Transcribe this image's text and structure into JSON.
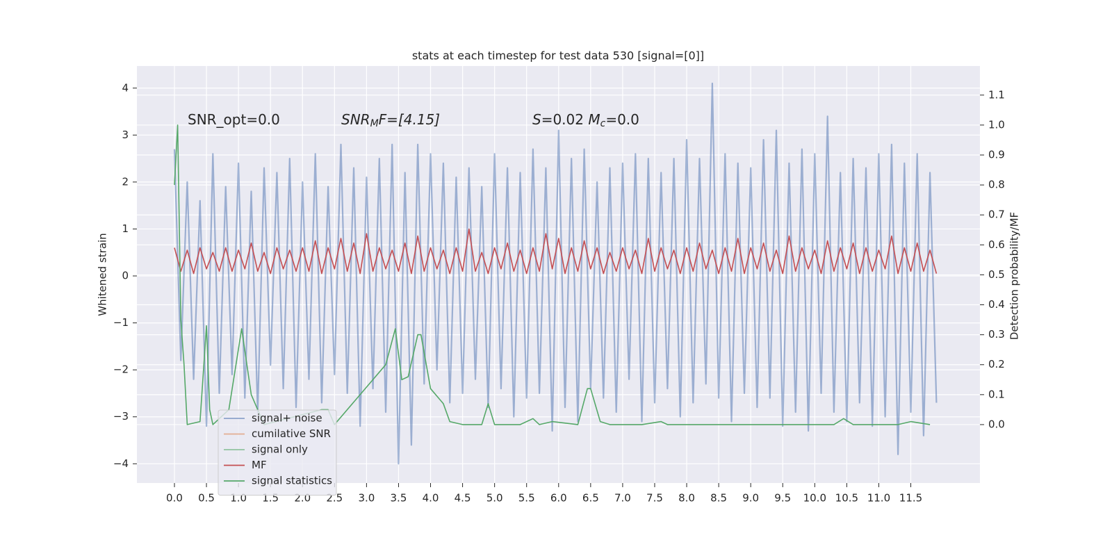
{
  "chart_data": {
    "type": "line",
    "title": "stats at each timestep for test data 530 [signal=[0]]",
    "y_label": "Whitened strain",
    "y2_label": "Detection probability/MF",
    "annotations": [
      [
        "SNR_opt=0.0"
      ],
      [
        "SNR",
        "M",
        "F=[4.15]"
      ],
      [
        "S",
        "=0.02   ",
        "M",
        "c",
        "=0.0"
      ]
    ],
    "xlim": [
      -0.586,
      12.58
    ],
    "ylim": [
      -4.41,
      4.47
    ],
    "y2lim": [
      -0.195,
      1.197
    ],
    "xticks": [
      {
        "value": 0,
        "label": "0.0"
      },
      {
        "value": 0.5,
        "label": "0.5"
      },
      {
        "value": 1,
        "label": "1.0"
      },
      {
        "value": 1.5,
        "label": "1.5"
      },
      {
        "value": 2,
        "label": "2.0"
      },
      {
        "value": 2.5,
        "label": "2.5"
      },
      {
        "value": 3,
        "label": "3.0"
      },
      {
        "value": 3.5,
        "label": "3.5"
      },
      {
        "value": 4,
        "label": "4.0"
      },
      {
        "value": 4.5,
        "label": "4.5"
      },
      {
        "value": 5,
        "label": "5.0"
      },
      {
        "value": 5.5,
        "label": "5.5"
      },
      {
        "value": 6,
        "label": "6.0"
      },
      {
        "value": 6.5,
        "label": "6.5"
      },
      {
        "value": 7,
        "label": "7.0"
      },
      {
        "value": 7.5,
        "label": "7.5"
      },
      {
        "value": 8,
        "label": "8.0"
      },
      {
        "value": 8.5,
        "label": "8.5"
      },
      {
        "value": 9,
        "label": "9.0"
      },
      {
        "value": 9.5,
        "label": "9.5"
      },
      {
        "value": 10,
        "label": "10.0"
      },
      {
        "value": 10.5,
        "label": "10.5"
      },
      {
        "value": 11,
        "label": "11.0"
      },
      {
        "value": 11.5,
        "label": "11.5"
      }
    ],
    "yticks": [
      {
        "value": -4,
        "label": "−4"
      },
      {
        "value": -3,
        "label": "−3"
      },
      {
        "value": -2,
        "label": "−2"
      },
      {
        "value": -1,
        "label": "−1"
      },
      0,
      1,
      2,
      3,
      4
    ],
    "y2ticks": [
      {
        "value": 0,
        "label": "0.0"
      },
      0.1,
      0.2,
      0.3,
      0.4,
      0.5,
      0.6,
      0.7,
      0.8,
      0.9,
      {
        "value": 1,
        "label": "1.0"
      },
      1.1
    ],
    "grid": true,
    "legend": "lower left",
    "series": [
      {
        "name": "signal+ noise",
        "color": "#4c72b0",
        "x": [
          0,
          0.1,
          0.2,
          0.3,
          0.4,
          0.5,
          0.6,
          0.7,
          0.8,
          0.9,
          1,
          1.1,
          1.2,
          1.3,
          1.4,
          1.5,
          1.6,
          1.7,
          1.8,
          1.9,
          2,
          2.1,
          2.2,
          2.3,
          2.4,
          2.5,
          2.6,
          2.7,
          2.8,
          2.9,
          3,
          3.1,
          3.2,
          3.3,
          3.4,
          3.5,
          3.6,
          3.7,
          3.8,
          3.9,
          4,
          4.1,
          4.2,
          4.3,
          4.4,
          4.5,
          4.6,
          4.7,
          4.8,
          4.9,
          5,
          5.1,
          5.2,
          5.3,
          5.4,
          5.5,
          5.6,
          5.7,
          5.8,
          5.9,
          6,
          6.1,
          6.2,
          6.3,
          6.4,
          6.5,
          6.6,
          6.7,
          6.8,
          6.9,
          7,
          7.1,
          7.2,
          7.3,
          7.4,
          7.5,
          7.6,
          7.7,
          7.8,
          7.9,
          8,
          8.1,
          8.2,
          8.3,
          8.4,
          8.5,
          8.6,
          8.7,
          8.8,
          8.9,
          9,
          9.1,
          9.2,
          9.3,
          9.4,
          9.5,
          9.6,
          9.7,
          9.8,
          9.9,
          10,
          10.1,
          10.2,
          10.3,
          10.4,
          10.5,
          10.6,
          10.7,
          10.8,
          10.9,
          11,
          11.1,
          11.2,
          11.3,
          11.4,
          11.5,
          11.6,
          11.7,
          11.8,
          11.9
        ],
        "values": [
          2.7,
          -1.8,
          2.0,
          -2.2,
          1.6,
          -3.2,
          2.6,
          -2.5,
          1.9,
          -2.1,
          2.4,
          -2.6,
          1.8,
          -2.9,
          2.3,
          -1.9,
          2.2,
          -2.4,
          2.5,
          -2.8,
          2.0,
          -2.2,
          2.6,
          -2.7,
          1.9,
          -2.1,
          2.8,
          -2.5,
          2.3,
          -3.2,
          2.1,
          -2.4,
          2.5,
          -2.9,
          2.8,
          -4.0,
          2.2,
          -3.6,
          2.8,
          -2.3,
          2.6,
          -2.0,
          2.4,
          -2.7,
          2.1,
          -2.5,
          2.3,
          -2.2,
          1.9,
          -2.8,
          2.6,
          -2.4,
          2.3,
          -3.0,
          2.2,
          -2.6,
          2.7,
          -2.5,
          2.3,
          -3.3,
          3.1,
          -2.8,
          2.5,
          -3.1,
          2.7,
          -2.4,
          2.0,
          -2.6,
          2.3,
          -2.9,
          2.4,
          -2.2,
          2.6,
          -3.1,
          2.5,
          -2.7,
          2.2,
          -2.4,
          2.5,
          -3.0,
          2.9,
          -2.7,
          2.5,
          -2.3,
          4.1,
          -2.6,
          2.6,
          -3.1,
          2.4,
          -2.5,
          2.3,
          -2.8,
          2.9,
          -2.6,
          3.1,
          -3.2,
          2.4,
          -2.9,
          2.7,
          -3.3,
          2.6,
          -2.5,
          3.4,
          -2.9,
          2.2,
          -3.1,
          2.5,
          -2.7,
          2.3,
          -3.2,
          2.6,
          -3.0,
          2.8,
          -3.8,
          2.4,
          -2.9,
          2.6,
          -3.4,
          2.2,
          -2.7
        ]
      },
      {
        "name": "cumilative SNR",
        "color": "#dd8452"
      },
      {
        "name": "signal only",
        "color": "#55a868"
      },
      {
        "name": "MF",
        "color": "#c44e52",
        "x": [
          0,
          0.1,
          0.2,
          0.3,
          0.4,
          0.5,
          0.6,
          0.7,
          0.8,
          0.9,
          1,
          1.1,
          1.2,
          1.3,
          1.4,
          1.5,
          1.6,
          1.7,
          1.8,
          1.9,
          2,
          2.1,
          2.2,
          2.3,
          2.4,
          2.5,
          2.6,
          2.7,
          2.8,
          2.9,
          3,
          3.1,
          3.2,
          3.3,
          3.4,
          3.5,
          3.6,
          3.7,
          3.8,
          3.9,
          4,
          4.1,
          4.2,
          4.3,
          4.4,
          4.5,
          4.6,
          4.7,
          4.8,
          4.9,
          5,
          5.1,
          5.2,
          5.3,
          5.4,
          5.5,
          5.6,
          5.7,
          5.8,
          5.9,
          6,
          6.1,
          6.2,
          6.3,
          6.4,
          6.5,
          6.6,
          6.7,
          6.8,
          6.9,
          7,
          7.1,
          7.2,
          7.3,
          7.4,
          7.5,
          7.6,
          7.7,
          7.8,
          7.9,
          8,
          8.1,
          8.2,
          8.3,
          8.4,
          8.5,
          8.6,
          8.7,
          8.8,
          8.9,
          9,
          9.1,
          9.2,
          9.3,
          9.4,
          9.5,
          9.6,
          9.7,
          9.8,
          9.9,
          10,
          10.1,
          10.2,
          10.3,
          10.4,
          10.5,
          10.6,
          10.7,
          10.8,
          10.9,
          11,
          11.1,
          11.2,
          11.3,
          11.4,
          11.5,
          11.6,
          11.7,
          11.8,
          11.9
        ],
        "values": [
          0.6,
          0.1,
          0.55,
          0.05,
          0.6,
          0.15,
          0.5,
          0.1,
          0.6,
          0.1,
          0.55,
          0.15,
          0.7,
          0.1,
          0.5,
          0.05,
          0.6,
          0.15,
          0.55,
          0.1,
          0.6,
          0.1,
          0.75,
          0.05,
          0.6,
          0.15,
          0.8,
          0.1,
          0.7,
          0.05,
          0.9,
          0.1,
          0.6,
          0.15,
          0.55,
          0.1,
          0.7,
          0.05,
          0.85,
          0.1,
          0.6,
          0.15,
          0.55,
          0.05,
          0.6,
          0.1,
          1.0,
          0.1,
          0.5,
          0.05,
          0.6,
          0.15,
          0.7,
          0.1,
          0.55,
          0.05,
          0.6,
          0.1,
          0.9,
          0.15,
          0.8,
          0.05,
          0.6,
          0.1,
          0.75,
          0.15,
          0.6,
          0.05,
          0.5,
          0.1,
          0.6,
          0.15,
          0.55,
          0.05,
          0.8,
          0.1,
          0.6,
          0.15,
          0.55,
          0.05,
          0.6,
          0.1,
          0.7,
          0.15,
          0.55,
          0.05,
          0.6,
          0.1,
          0.8,
          0.05,
          0.6,
          0.15,
          0.7,
          0.1,
          0.55,
          0.05,
          0.85,
          0.1,
          0.6,
          0.15,
          0.55,
          0.05,
          0.75,
          0.1,
          0.6,
          0.15,
          0.7,
          0.05,
          0.6,
          0.1,
          0.55,
          0.15,
          0.85,
          0.05,
          0.6,
          0.1,
          0.7,
          0.1,
          0.55,
          0.05
        ]
      },
      {
        "name": "signal statistics",
        "color": "#55a868",
        "axis": "y2",
        "x": [
          0,
          0.05,
          0.1,
          0.15,
          0.2,
          0.4,
          0.5,
          0.55,
          0.6,
          0.85,
          1.05,
          1.2,
          1.3,
          1.4,
          2.3,
          2.4,
          2.5,
          3.3,
          3.45,
          3.55,
          3.65,
          3.8,
          3.85,
          4.0,
          4.2,
          4.3,
          4.5,
          4.8,
          4.9,
          5.0,
          5.4,
          5.6,
          5.7,
          5.9,
          6.3,
          6.45,
          6.5,
          6.65,
          6.8,
          7.3,
          7.6,
          7.7,
          10.3,
          10.45,
          10.6,
          11.3,
          11.5,
          11.8
        ],
        "values": [
          0.8,
          1.0,
          0.35,
          0.2,
          0.0,
          0.01,
          0.33,
          0.05,
          0.0,
          0.05,
          0.32,
          0.1,
          0.05,
          0.0,
          0.05,
          0.05,
          0.0,
          0.2,
          0.32,
          0.15,
          0.16,
          0.3,
          0.3,
          0.12,
          0.07,
          0.01,
          0.0,
          0.0,
          0.07,
          0.0,
          0.0,
          0.02,
          0.0,
          0.01,
          0.0,
          0.12,
          0.12,
          0.01,
          0.0,
          0.0,
          0.01,
          0.0,
          0.0,
          0.02,
          0.0,
          0.0,
          0.01,
          0.0
        ]
      }
    ]
  }
}
